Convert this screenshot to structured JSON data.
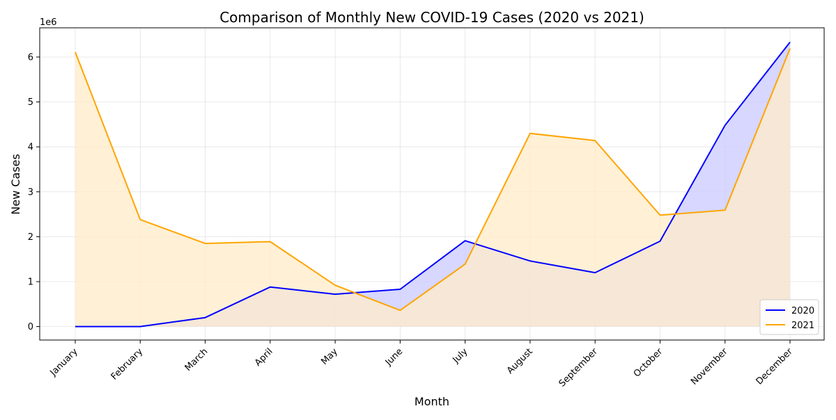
{
  "chart_data": {
    "type": "area",
    "title": "Comparison of Monthly New COVID-19 Cases (2020 vs 2021)",
    "xlabel": "Month",
    "ylabel": "New Cases",
    "y_offset_label": "1e6",
    "categories": [
      "January",
      "February",
      "March",
      "April",
      "May",
      "June",
      "July",
      "August",
      "September",
      "October",
      "November",
      "December"
    ],
    "ylim": [
      -300000,
      6650000
    ],
    "yticks": [
      0,
      1000000,
      2000000,
      3000000,
      4000000,
      5000000,
      6000000
    ],
    "ytick_labels": [
      "0",
      "1",
      "2",
      "3",
      "4",
      "5",
      "6"
    ],
    "grid": true,
    "legend_position": "lower-right",
    "series": [
      {
        "name": "2020",
        "color": "#0000ff",
        "fill": "#ccccff",
        "values": [
          0,
          0,
          200000,
          880000,
          720000,
          830000,
          1910000,
          1460000,
          1200000,
          1900000,
          4480000,
          6330000
        ]
      },
      {
        "name": "2021",
        "color": "#ffa500",
        "fill": "#ffecca",
        "values": [
          6110000,
          2380000,
          1850000,
          1890000,
          920000,
          360000,
          1390000,
          4300000,
          4140000,
          2480000,
          2590000,
          6190000
        ]
      }
    ]
  }
}
